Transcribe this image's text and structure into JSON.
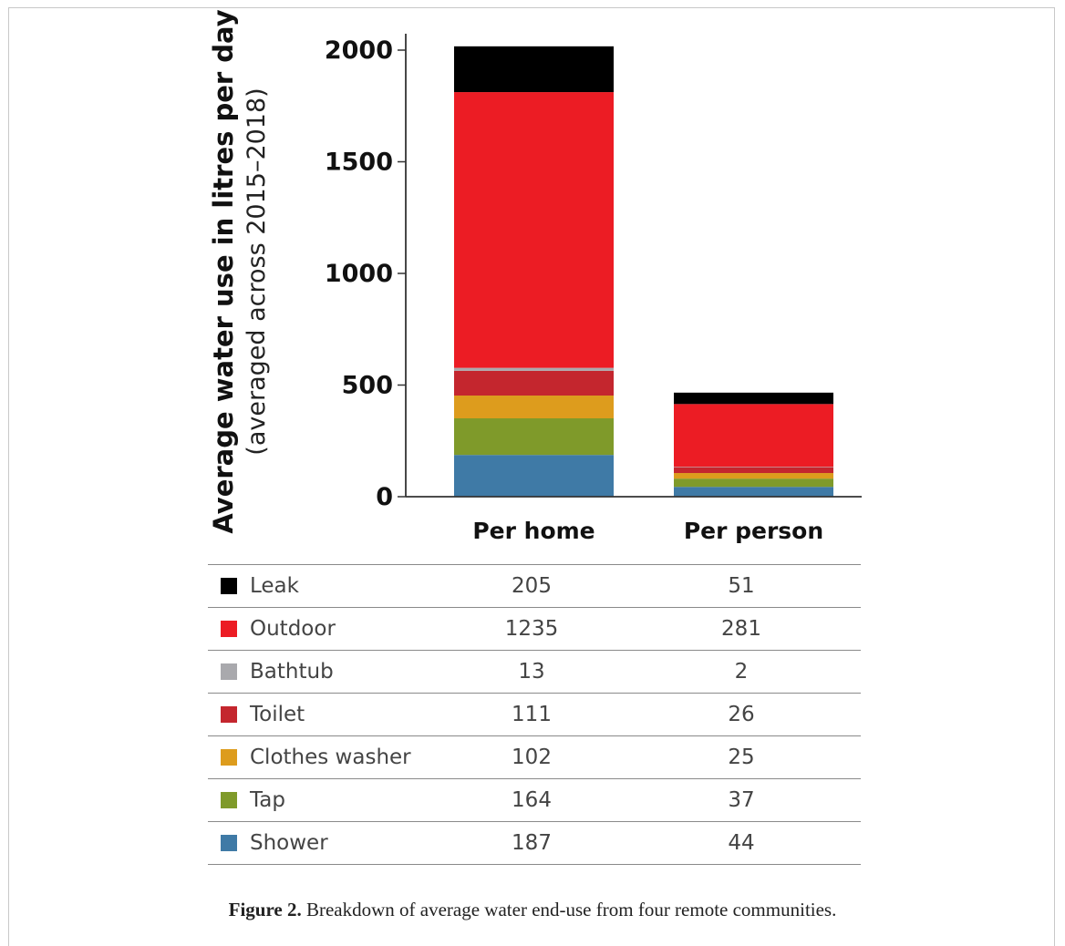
{
  "chart_data": {
    "type": "bar",
    "stacked": true,
    "categories": [
      "Per home",
      "Per person"
    ],
    "ylabel": "Average water use in litres per day",
    "ylabel_sub": "(averaged across 2015–2018)",
    "ylim": [
      0,
      2000
    ],
    "yticks": [
      0,
      500,
      1000,
      1500,
      2000
    ],
    "series": [
      {
        "name": "Shower",
        "color": "#3f7aa6",
        "values": [
          187,
          44
        ]
      },
      {
        "name": "Tap",
        "color": "#7f9a2a",
        "values": [
          164,
          37
        ]
      },
      {
        "name": "Clothes washer",
        "color": "#dd9c1d",
        "values": [
          102,
          25
        ]
      },
      {
        "name": "Toilet",
        "color": "#c4262e",
        "values": [
          111,
          26
        ]
      },
      {
        "name": "Bathtub",
        "color": "#a9a9ad",
        "values": [
          13,
          2
        ]
      },
      {
        "name": "Outdoor",
        "color": "#ec1c24",
        "values": [
          1235,
          281
        ]
      },
      {
        "name": "Leak",
        "color": "#000000",
        "values": [
          205,
          51
        ]
      }
    ]
  },
  "caption": {
    "label": "Figure 2.",
    "text": " Breakdown of average water end-use from four remote communities."
  }
}
